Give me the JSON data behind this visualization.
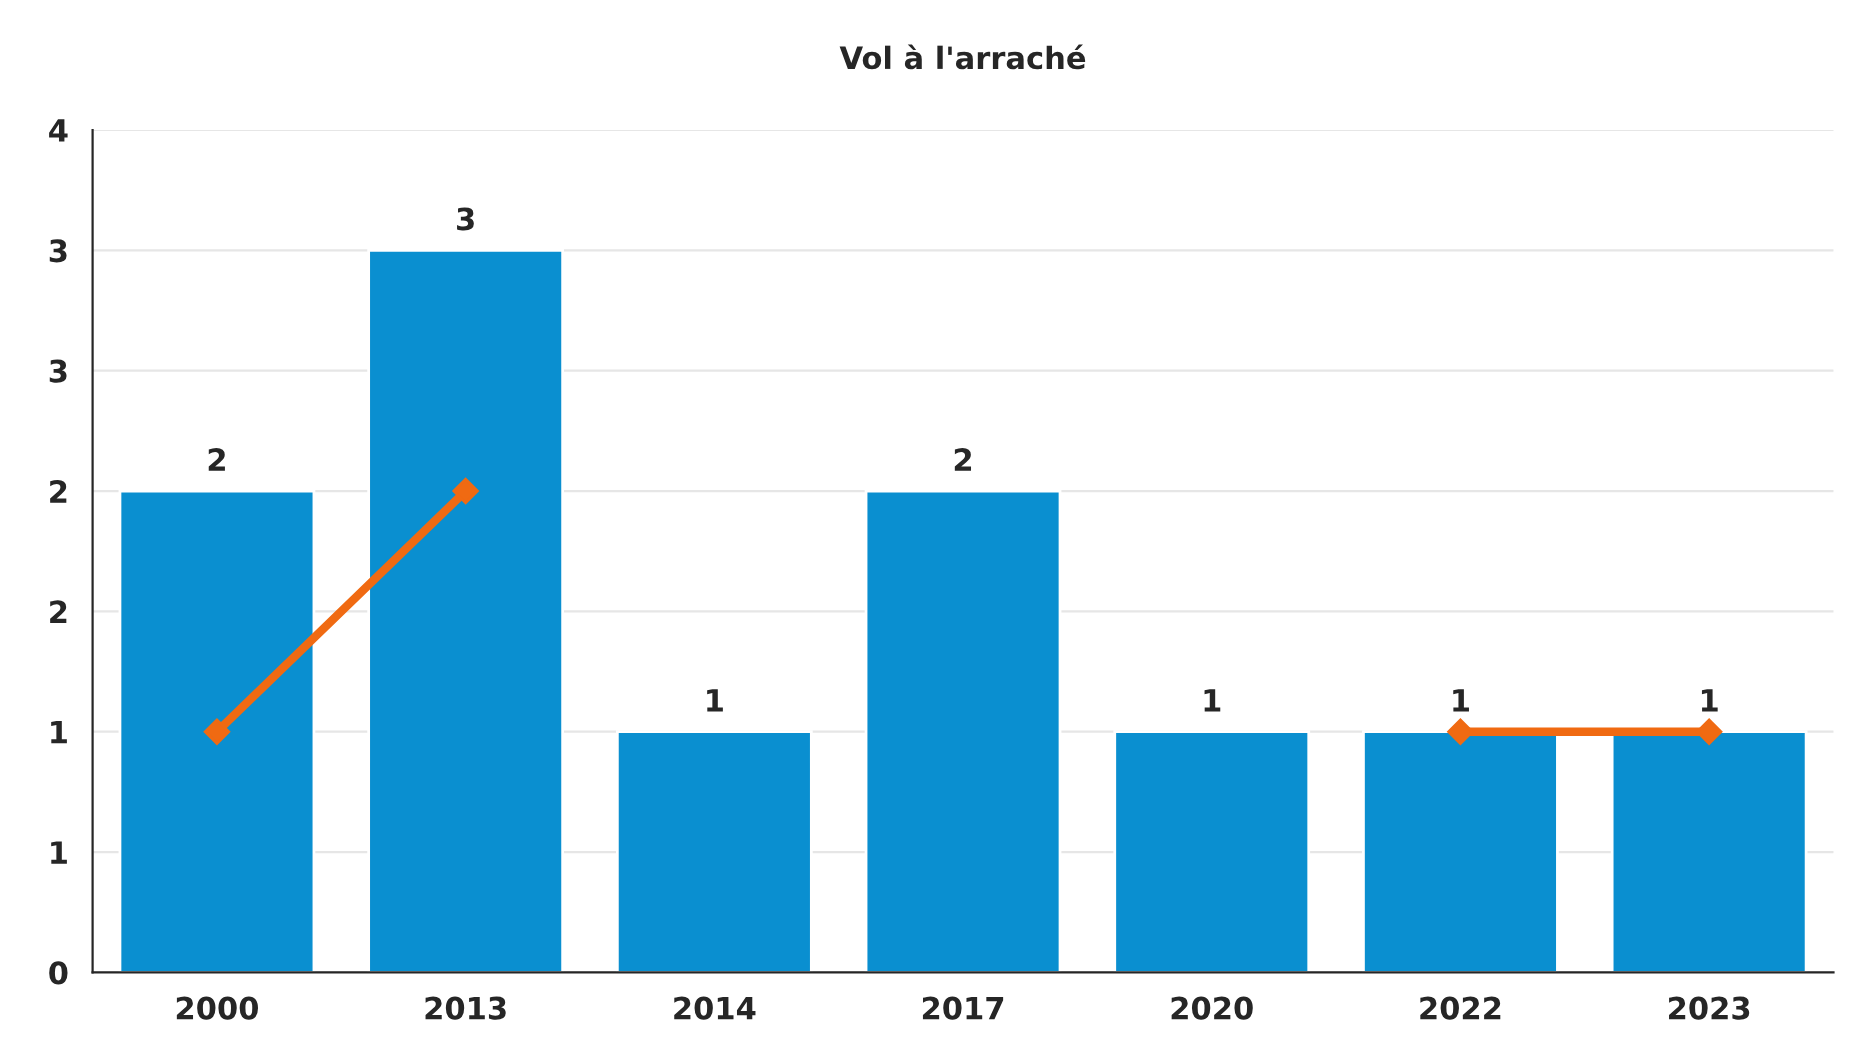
{
  "chart_data": {
    "type": "bar",
    "title": "Vol à l'arraché",
    "categories": [
      "2000",
      "2013",
      "2014",
      "2017",
      "2020",
      "2022",
      "2023"
    ],
    "series": [
      {
        "color": "#0a8fd0",
        "values": [
          2,
          3,
          1,
          2,
          1,
          1,
          1
        ],
        "value_labels": [
          "2",
          "3",
          "1",
          "2",
          "1",
          "1",
          "1"
        ]
      },
      {
        "type": "line",
        "color": "#f06a12",
        "values": [
          1,
          2,
          null,
          null,
          null,
          1,
          1
        ],
        "marker": "diamond",
        "line_style": "solid"
      }
    ],
    "ylim": [
      0,
      3.5
    ],
    "yticks": [
      0,
      {
        "value": 0.5,
        "label": "1"
      },
      1,
      {
        "value": 1.5,
        "label": "2"
      },
      2,
      {
        "value": 2.5,
        "label": "3"
      },
      3,
      {
        "value": 3.5,
        "label": "4"
      }
    ],
    "grid": "y",
    "legend": false
  }
}
